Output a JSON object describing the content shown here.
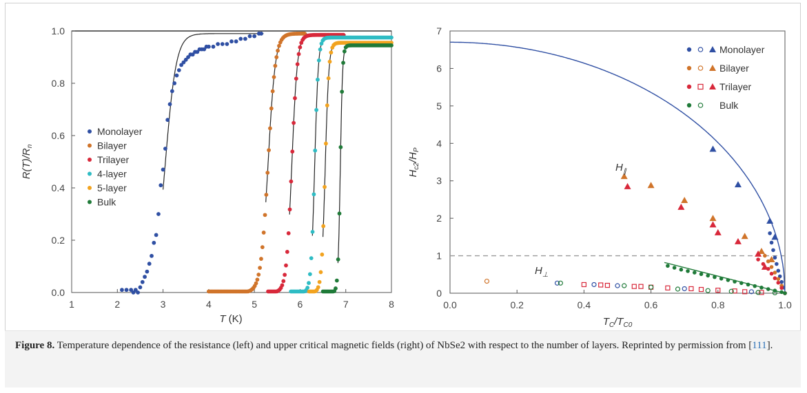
{
  "caption": {
    "label": "Figure 8.",
    "text_before_ref": " Temperature dependence of the resistance (left) and upper critical magnetic fields (right) of NbSe2 with respect to the number of layers. Reprinted by permission from [",
    "ref": "111",
    "text_after_ref": "]."
  },
  "colors": {
    "Monolayer": "#2f4fa3",
    "Bilayer": "#d0742a",
    "Trilayer": "#d8283a",
    "4-layer": "#2fbcc4",
    "5-layer": "#f2a31f",
    "Bulk": "#1f7a38"
  },
  "chart_data": [
    {
      "type": "scatter",
      "ylabel": "R(T)/R",
      "ylabel_sub": "n",
      "xlabel": "T",
      "xlabel_unit": "(K)",
      "xlim": [
        1,
        8
      ],
      "ylim": [
        0,
        1
      ],
      "xticks": [
        "1",
        "2",
        "3",
        "4",
        "5",
        "6",
        "7",
        "8"
      ],
      "yticks": [
        "0.0",
        "0.2",
        "0.4",
        "0.6",
        "0.8",
        "1.0"
      ],
      "legend": [
        "Monolayer",
        "Bilayer",
        "Trilayer",
        "4-layer",
        "5-layer",
        "Bulk"
      ],
      "legend_position": "center-left",
      "series": [
        {
          "name": "Monolayer",
          "tc": 3.05,
          "width": 0.12,
          "x_start": 2.1,
          "x_end": 5.15,
          "top": 0.99,
          "x": [
            2.1,
            2.2,
            2.3,
            2.35,
            2.4,
            2.45,
            2.5,
            2.55,
            2.6,
            2.65,
            2.7,
            2.75,
            2.8,
            2.85,
            2.9,
            2.95,
            3.0,
            3.05,
            3.1,
            3.15,
            3.2,
            3.25,
            3.3,
            3.35,
            3.4,
            3.45,
            3.5,
            3.55,
            3.6,
            3.65,
            3.7,
            3.75,
            3.8,
            3.85,
            3.9,
            3.95,
            4.0,
            4.1,
            4.2,
            4.3,
            4.4,
            4.5,
            4.6,
            4.7,
            4.8,
            4.9,
            5.0,
            5.1,
            5.15
          ],
          "y": [
            0.01,
            0.01,
            0.01,
            0.0,
            0.01,
            0.0,
            0.02,
            0.04,
            0.06,
            0.08,
            0.11,
            0.14,
            0.19,
            0.22,
            0.3,
            0.41,
            0.47,
            0.55,
            0.66,
            0.72,
            0.77,
            0.8,
            0.83,
            0.85,
            0.87,
            0.88,
            0.89,
            0.9,
            0.91,
            0.91,
            0.92,
            0.92,
            0.93,
            0.93,
            0.93,
            0.94,
            0.94,
            0.94,
            0.95,
            0.95,
            0.95,
            0.96,
            0.96,
            0.97,
            0.97,
            0.98,
            0.98,
            0.99,
            0.99
          ]
        },
        {
          "name": "Bilayer",
          "tc": 5.3,
          "width": 0.08,
          "x_start": 4.0,
          "x_end": 6.1,
          "top": 0.99
        },
        {
          "name": "Trilayer",
          "tc": 5.82,
          "width": 0.06,
          "x_start": 5.3,
          "x_end": 6.95,
          "top": 0.985
        },
        {
          "name": "4-layer",
          "tc": 6.32,
          "width": 0.04,
          "x_start": 5.8,
          "x_end": 8.0,
          "top": 0.975
        },
        {
          "name": "5-layer",
          "tc": 6.55,
          "width": 0.04,
          "x_start": 6.2,
          "x_end": 8.0,
          "top": 0.955
        },
        {
          "name": "Bulk",
          "tc": 6.88,
          "width": 0.025,
          "x_start": 6.5,
          "x_end": 8.0,
          "top": 0.945
        }
      ]
    },
    {
      "type": "scatter",
      "ylabel": "H",
      "ylabel_sub1": "c2",
      "ylabel_mid": "/H",
      "ylabel_sub2": "P",
      "xlabel": "T",
      "xlabel_sub1": "C",
      "xlabel_mid": "/T",
      "xlabel_sub2": "C0",
      "xlim": [
        0,
        1
      ],
      "ylim": [
        0,
        7
      ],
      "xticks": [
        "0.0",
        "0.2",
        "0.4",
        "0.6",
        "0.8",
        "1.0"
      ],
      "yticks": [
        "0",
        "1",
        "2",
        "3",
        "4",
        "5",
        "6",
        "7"
      ],
      "legend": [
        "Monolayer",
        "Bilayer",
        "Trilayer",
        "Bulk"
      ],
      "legend_position": "top-right",
      "annotations": [
        {
          "text": "H",
          "sub": "∥"
        },
        {
          "text": "H",
          "sub": "⊥"
        }
      ],
      "reference_line_y": 1,
      "fit_curve": {
        "name": "Monolayer",
        "y0": 6.7
      },
      "parallel": [
        {
          "name": "Monolayer",
          "x": [
            0.785,
            0.86,
            0.955,
            0.97
          ],
          "y": [
            3.85,
            2.9,
            1.93,
            1.5
          ]
        },
        {
          "name": "Bilayer",
          "x": [
            0.52,
            0.6,
            0.7,
            0.785,
            0.88,
            0.93,
            0.96
          ],
          "y": [
            3.12,
            2.88,
            2.48,
            2.0,
            1.52,
            1.12,
            0.9
          ]
        },
        {
          "name": "Trilayer",
          "x": [
            0.53,
            0.69,
            0.785,
            0.8,
            0.86,
            0.92,
            0.94
          ],
          "y": [
            2.85,
            2.3,
            1.83,
            1.62,
            1.38,
            1.05,
            0.7
          ]
        }
      ],
      "parallel_dots": [
        {
          "name": "Monolayer",
          "x": [
            0.955,
            0.96,
            0.965,
            0.97,
            0.975,
            0.98,
            0.985,
            0.99,
            0.995,
            1.0
          ],
          "y": [
            1.6,
            1.35,
            1.15,
            0.95,
            0.78,
            0.6,
            0.45,
            0.3,
            0.15,
            0.0
          ]
        },
        {
          "name": "Bilayer",
          "x": [
            0.94,
            0.95,
            0.96,
            0.97,
            0.98,
            0.99,
            1.0
          ],
          "y": [
            1.0,
            0.85,
            0.7,
            0.55,
            0.38,
            0.2,
            0.0
          ]
        },
        {
          "name": "Trilayer",
          "x": [
            0.92,
            0.935,
            0.95,
            0.96,
            0.97,
            0.98,
            0.99,
            1.0
          ],
          "y": [
            0.9,
            0.78,
            0.65,
            0.52,
            0.4,
            0.28,
            0.14,
            0.0
          ]
        },
        {
          "name": "Bulk",
          "x": [
            0.65,
            0.67,
            0.69,
            0.71,
            0.73,
            0.75,
            0.77,
            0.79,
            0.81,
            0.83,
            0.85,
            0.87,
            0.89,
            0.91,
            0.93,
            0.95,
            0.97,
            0.99,
            1.0
          ],
          "y": [
            0.73,
            0.68,
            0.63,
            0.59,
            0.55,
            0.51,
            0.47,
            0.43,
            0.39,
            0.35,
            0.31,
            0.27,
            0.23,
            0.19,
            0.15,
            0.11,
            0.07,
            0.03,
            0.0
          ]
        }
      ],
      "bulk_fit": {
        "x": [
          0.64,
          1.0
        ],
        "y": [
          0.82,
          0.0
        ]
      },
      "perpendicular": [
        {
          "name": "Bilayer",
          "x": [
            0.11
          ],
          "y": [
            0.32
          ]
        },
        {
          "name": "Monolayer",
          "x": [
            0.32,
            0.43,
            0.5,
            0.7,
            0.9
          ],
          "y": [
            0.27,
            0.23,
            0.2,
            0.12,
            0.04
          ]
        },
        {
          "name": "Trilayer",
          "x": [
            0.4,
            0.45,
            0.47,
            0.55,
            0.57,
            0.6,
            0.65,
            0.72,
            0.75,
            0.8,
            0.85,
            0.88,
            0.93
          ],
          "y": [
            0.23,
            0.22,
            0.21,
            0.18,
            0.18,
            0.16,
            0.14,
            0.12,
            0.1,
            0.08,
            0.06,
            0.04,
            0.02
          ]
        },
        {
          "name": "Bulk",
          "x": [
            0.33,
            0.52,
            0.6,
            0.68,
            0.77,
            0.84,
            0.92,
            0.97
          ],
          "y": [
            0.27,
            0.2,
            0.16,
            0.11,
            0.07,
            0.05,
            0.02,
            0.01
          ]
        }
      ]
    }
  ]
}
